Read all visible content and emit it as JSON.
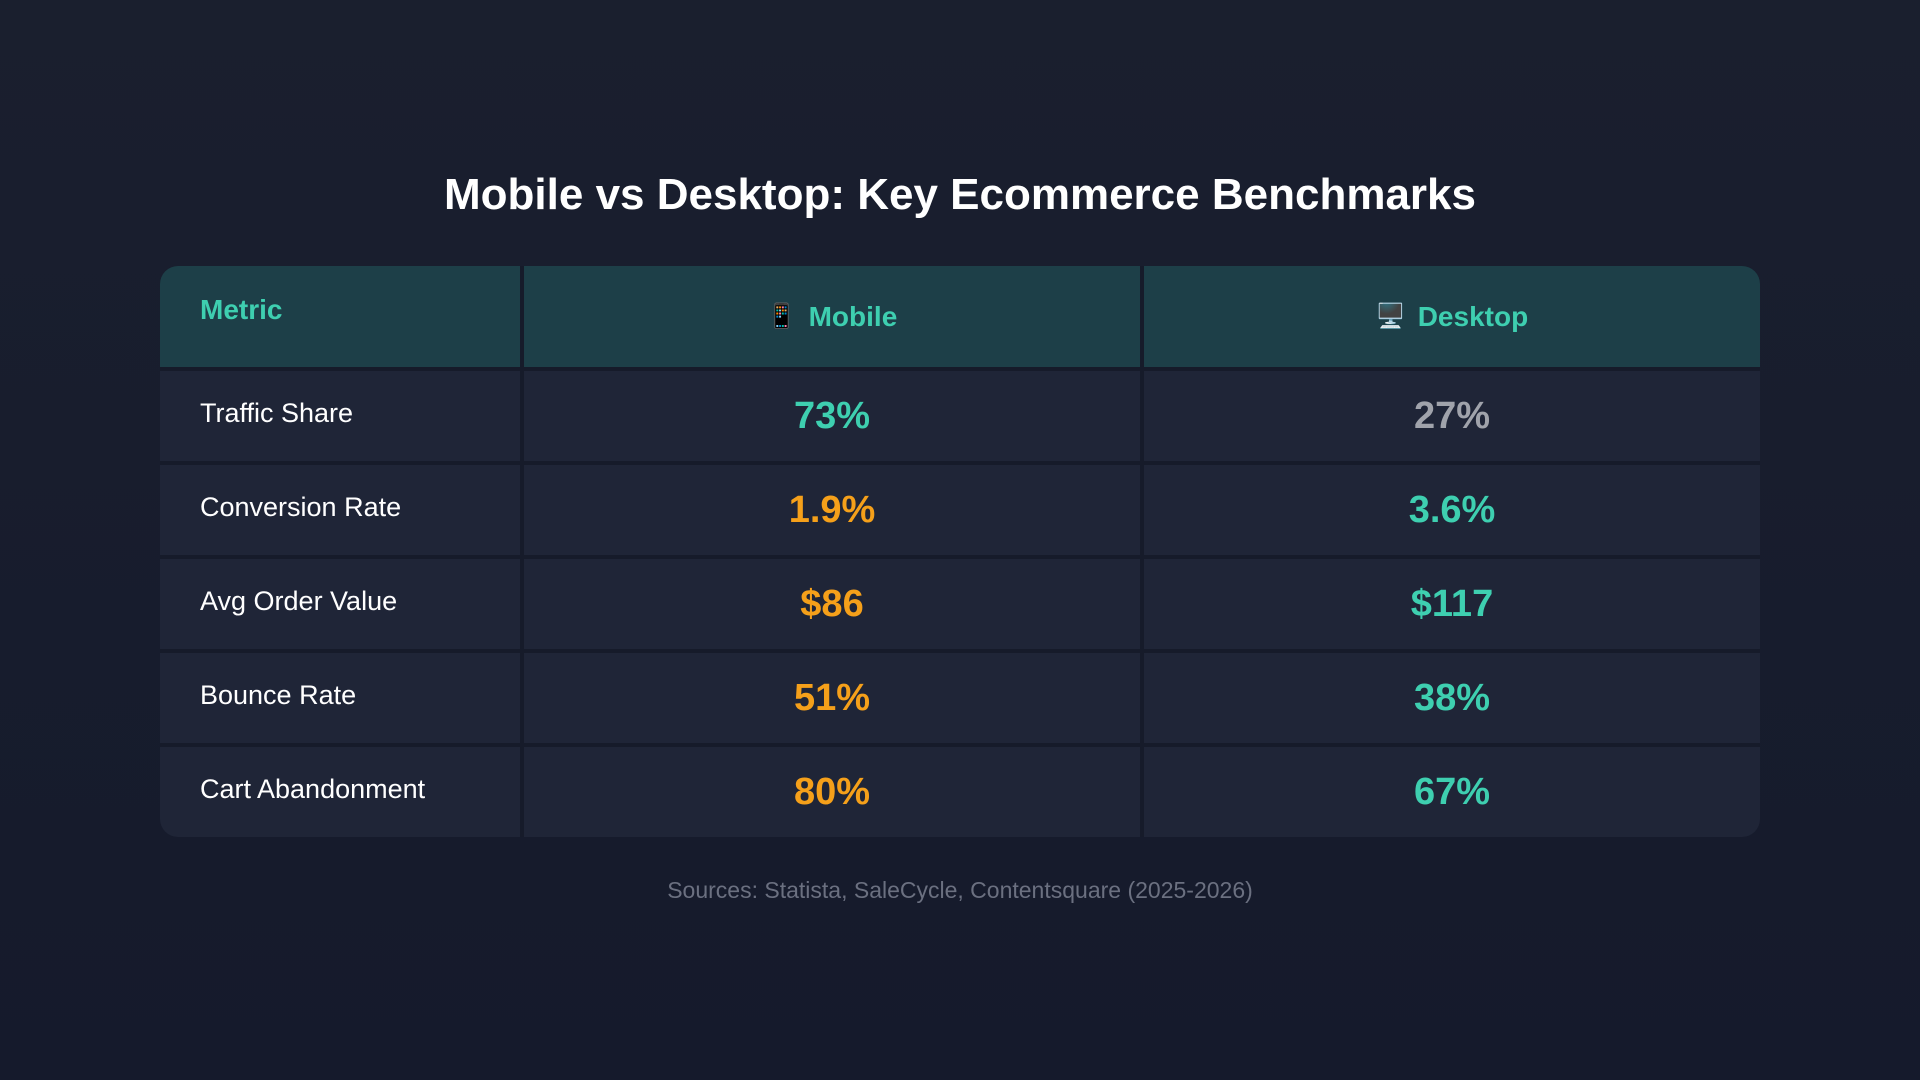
{
  "title": "Mobile vs Desktop: Key Ecommerce Benchmarks",
  "table": {
    "headers": {
      "metric": "Metric",
      "mobile": "Mobile",
      "desktop": "Desktop",
      "mobile_icon": "📱",
      "desktop_icon": "🖥️"
    },
    "rows": [
      {
        "metric": "Traffic Share",
        "mobile": "73%",
        "desktop": "27%",
        "mobile_color": "teal",
        "desktop_color": "gray"
      },
      {
        "metric": "Conversion Rate",
        "mobile": "1.9%",
        "desktop": "3.6%",
        "mobile_color": "orange",
        "desktop_color": "teal"
      },
      {
        "metric": "Avg Order Value",
        "mobile": "$86",
        "desktop": "$117",
        "mobile_color": "orange",
        "desktop_color": "teal"
      },
      {
        "metric": "Bounce Rate",
        "mobile": "51%",
        "desktop": "38%",
        "mobile_color": "orange",
        "desktop_color": "teal"
      },
      {
        "metric": "Cart Abandonment",
        "mobile": "80%",
        "desktop": "67%",
        "mobile_color": "orange",
        "desktop_color": "teal"
      }
    ]
  },
  "footer": "Sources: Statista, SaleCycle, Contentsquare (2025-2026)",
  "colors": {
    "teal": "#3ecfb0",
    "orange": "#f5a01a",
    "gray": "#a0a3ab",
    "header_bg": "#1d3f48",
    "row_bg": "#1f2537"
  }
}
